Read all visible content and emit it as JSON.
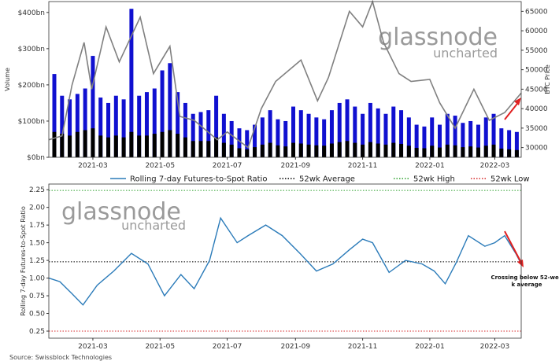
{
  "chart_data": [
    {
      "type": "bar",
      "ylabel": "Volume",
      "y2label": "BTC Price",
      "x_ticks": [
        "2021-03",
        "2021-05",
        "2021-07",
        "2021-09",
        "2021-11",
        "2022-01",
        "2022-03"
      ],
      "x_range": [
        "2021-01-20",
        "2022-03-25"
      ],
      "ylim": [
        0,
        430
      ],
      "yticks": [
        {
          "value": 0,
          "label": "$0bn"
        },
        {
          "value": 100,
          "label": "$100bn"
        },
        {
          "value": 200,
          "label": "$200bn"
        },
        {
          "value": 300,
          "label": "$300bn"
        },
        {
          "value": 400,
          "label": "$400bn"
        }
      ],
      "y2lim": [
        27500,
        67500
      ],
      "y2ticks": [
        30000,
        35000,
        40000,
        45000,
        50000,
        55000,
        60000,
        65000
      ],
      "series": [
        {
          "kind": "bar",
          "color": "#1010d0",
          "x": [
            "2021-01-25",
            "2021-02-01",
            "2021-02-08",
            "2021-02-15",
            "2021-02-22",
            "2021-03-01",
            "2021-03-08",
            "2021-03-15",
            "2021-03-22",
            "2021-03-29",
            "2021-04-05",
            "2021-04-12",
            "2021-04-19",
            "2021-04-26",
            "2021-05-03",
            "2021-05-10",
            "2021-05-17",
            "2021-05-24",
            "2021-05-31",
            "2021-06-07",
            "2021-06-14",
            "2021-06-21",
            "2021-06-28",
            "2021-07-05",
            "2021-07-12",
            "2021-07-19",
            "2021-07-26",
            "2021-08-02",
            "2021-08-09",
            "2021-08-16",
            "2021-08-23",
            "2021-08-30",
            "2021-09-06",
            "2021-09-13",
            "2021-09-20",
            "2021-09-27",
            "2021-10-04",
            "2021-10-11",
            "2021-10-18",
            "2021-10-25",
            "2021-11-01",
            "2021-11-08",
            "2021-11-15",
            "2021-11-22",
            "2021-11-29",
            "2021-12-06",
            "2021-12-13",
            "2021-12-20",
            "2021-12-27",
            "2022-01-03",
            "2022-01-10",
            "2022-01-17",
            "2022-01-24",
            "2022-01-31",
            "2022-02-07",
            "2022-02-14",
            "2022-02-21",
            "2022-02-28",
            "2022-03-07",
            "2022-03-14",
            "2022-03-21"
          ],
          "values": [
            230,
            170,
            160,
            175,
            190,
            280,
            165,
            150,
            170,
            160,
            410,
            170,
            180,
            190,
            240,
            260,
            180,
            150,
            120,
            125,
            130,
            170,
            120,
            100,
            80,
            75,
            90,
            110,
            130,
            105,
            100,
            140,
            130,
            120,
            110,
            105,
            130,
            150,
            160,
            140,
            120,
            150,
            135,
            120,
            140,
            130,
            110,
            90,
            85,
            110,
            90,
            120,
            115,
            95,
            100,
            90,
            110,
            120,
            80,
            75,
            70
          ]
        },
        {
          "kind": "bar",
          "color": "#000000",
          "x": [
            "2021-01-25",
            "2021-02-01",
            "2021-02-08",
            "2021-02-15",
            "2021-02-22",
            "2021-03-01",
            "2021-03-08",
            "2021-03-15",
            "2021-03-22",
            "2021-03-29",
            "2021-04-05",
            "2021-04-12",
            "2021-04-19",
            "2021-04-26",
            "2021-05-03",
            "2021-05-10",
            "2021-05-17",
            "2021-05-24",
            "2021-05-31",
            "2021-06-07",
            "2021-06-14",
            "2021-06-21",
            "2021-06-28",
            "2021-07-05",
            "2021-07-12",
            "2021-07-19",
            "2021-07-26",
            "2021-08-02",
            "2021-08-09",
            "2021-08-16",
            "2021-08-23",
            "2021-08-30",
            "2021-09-06",
            "2021-09-13",
            "2021-09-20",
            "2021-09-27",
            "2021-10-04",
            "2021-10-11",
            "2021-10-18",
            "2021-10-25",
            "2021-11-01",
            "2021-11-08",
            "2021-11-15",
            "2021-11-22",
            "2021-11-29",
            "2021-12-06",
            "2021-12-13",
            "2021-12-20",
            "2021-12-27",
            "2022-01-03",
            "2022-01-10",
            "2022-01-17",
            "2022-01-24",
            "2022-01-31",
            "2022-02-07",
            "2022-02-14",
            "2022-02-21",
            "2022-02-28",
            "2022-03-07",
            "2022-03-14",
            "2022-03-21"
          ],
          "values": [
            70,
            65,
            60,
            70,
            75,
            80,
            60,
            55,
            60,
            55,
            70,
            60,
            60,
            65,
            70,
            75,
            65,
            55,
            45,
            45,
            45,
            55,
            40,
            35,
            25,
            22,
            28,
            35,
            40,
            33,
            30,
            40,
            38,
            35,
            33,
            32,
            38,
            42,
            45,
            40,
            35,
            42,
            38,
            35,
            40,
            37,
            32,
            26,
            25,
            32,
            27,
            35,
            33,
            28,
            30,
            27,
            32,
            35,
            24,
            22,
            20
          ]
        },
        {
          "kind": "line",
          "color": "#808080",
          "axis": "right",
          "x": [
            "2021-01-20",
            "2021-02-01",
            "2021-02-10",
            "2021-02-21",
            "2021-02-28",
            "2021-03-13",
            "2021-03-25",
            "2021-04-13",
            "2021-04-25",
            "2021-05-10",
            "2021-05-19",
            "2021-06-01",
            "2021-06-22",
            "2021-07-01",
            "2021-07-20",
            "2021-08-01",
            "2021-08-14",
            "2021-09-06",
            "2021-09-21",
            "2021-10-01",
            "2021-10-20",
            "2021-11-01",
            "2021-11-10",
            "2021-11-20",
            "2021-12-04",
            "2021-12-15",
            "2022-01-01",
            "2022-01-10",
            "2022-01-24",
            "2022-02-10",
            "2022-02-24",
            "2022-03-10",
            "2022-03-25"
          ],
          "values": [
            32000,
            33000,
            46000,
            57000,
            45000,
            61000,
            52000,
            63500,
            49000,
            56000,
            38000,
            37000,
            32000,
            34000,
            30000,
            40000,
            47000,
            52500,
            42000,
            48000,
            65000,
            61000,
            67500,
            57000,
            49000,
            47000,
            47500,
            41500,
            35000,
            45000,
            37000,
            39000,
            44000
          ]
        }
      ]
    },
    {
      "type": "line",
      "ylabel": "Rolling 7-day Futures-to-Spot Ratio",
      "x_ticks": [
        "2021-03",
        "2021-05",
        "2021-07",
        "2021-09",
        "2021-11",
        "2022-01",
        "2022-03"
      ],
      "x_range": [
        "2021-01-20",
        "2022-03-25"
      ],
      "ylim": [
        0.15,
        2.33
      ],
      "yticks": [
        "0.25",
        "0.50",
        "0.75",
        "1.00",
        "1.25",
        "1.50",
        "1.75",
        "2.00",
        "2.25"
      ],
      "legend_position": "top",
      "series": [
        {
          "name": "Rolling 7-day Futures-to-Spot Ratio",
          "color": "#2b7bb9",
          "x": [
            "2021-01-20",
            "2021-01-30",
            "2021-02-10",
            "2021-02-20",
            "2021-03-05",
            "2021-03-20",
            "2021-04-05",
            "2021-04-20",
            "2021-05-05",
            "2021-05-20",
            "2021-06-01",
            "2021-06-15",
            "2021-06-25",
            "2021-07-10",
            "2021-07-20",
            "2021-08-05",
            "2021-08-20",
            "2021-09-05",
            "2021-09-20",
            "2021-10-05",
            "2021-10-20",
            "2021-11-01",
            "2021-11-10",
            "2021-11-25",
            "2021-12-10",
            "2021-12-25",
            "2022-01-05",
            "2022-01-15",
            "2022-01-25",
            "2022-02-05",
            "2022-02-20",
            "2022-03-01",
            "2022-03-10",
            "2022-03-20",
            "2022-03-25"
          ],
          "values": [
            1.0,
            0.95,
            0.78,
            0.62,
            0.9,
            1.1,
            1.35,
            1.2,
            0.75,
            1.05,
            0.85,
            1.25,
            1.85,
            1.5,
            1.6,
            1.75,
            1.6,
            1.35,
            1.1,
            1.2,
            1.4,
            1.55,
            1.5,
            1.08,
            1.25,
            1.2,
            1.1,
            0.92,
            1.22,
            1.6,
            1.45,
            1.5,
            1.6,
            1.35,
            1.2
          ]
        },
        {
          "name": "52wk Average",
          "color": "#000000",
          "style": "dotted",
          "value": 1.23
        },
        {
          "name": "52wk High",
          "color": "#2ca02c",
          "style": "dotted",
          "value": 2.24
        },
        {
          "name": "52wk Low",
          "color": "#d62728",
          "style": "dotted",
          "value": 0.25
        }
      ],
      "annotation": "Crossing below 52-week average"
    }
  ],
  "watermark": {
    "brand": "glassnode",
    "tagline": "uncharted"
  },
  "source": "Source: Swissblock Technologies"
}
